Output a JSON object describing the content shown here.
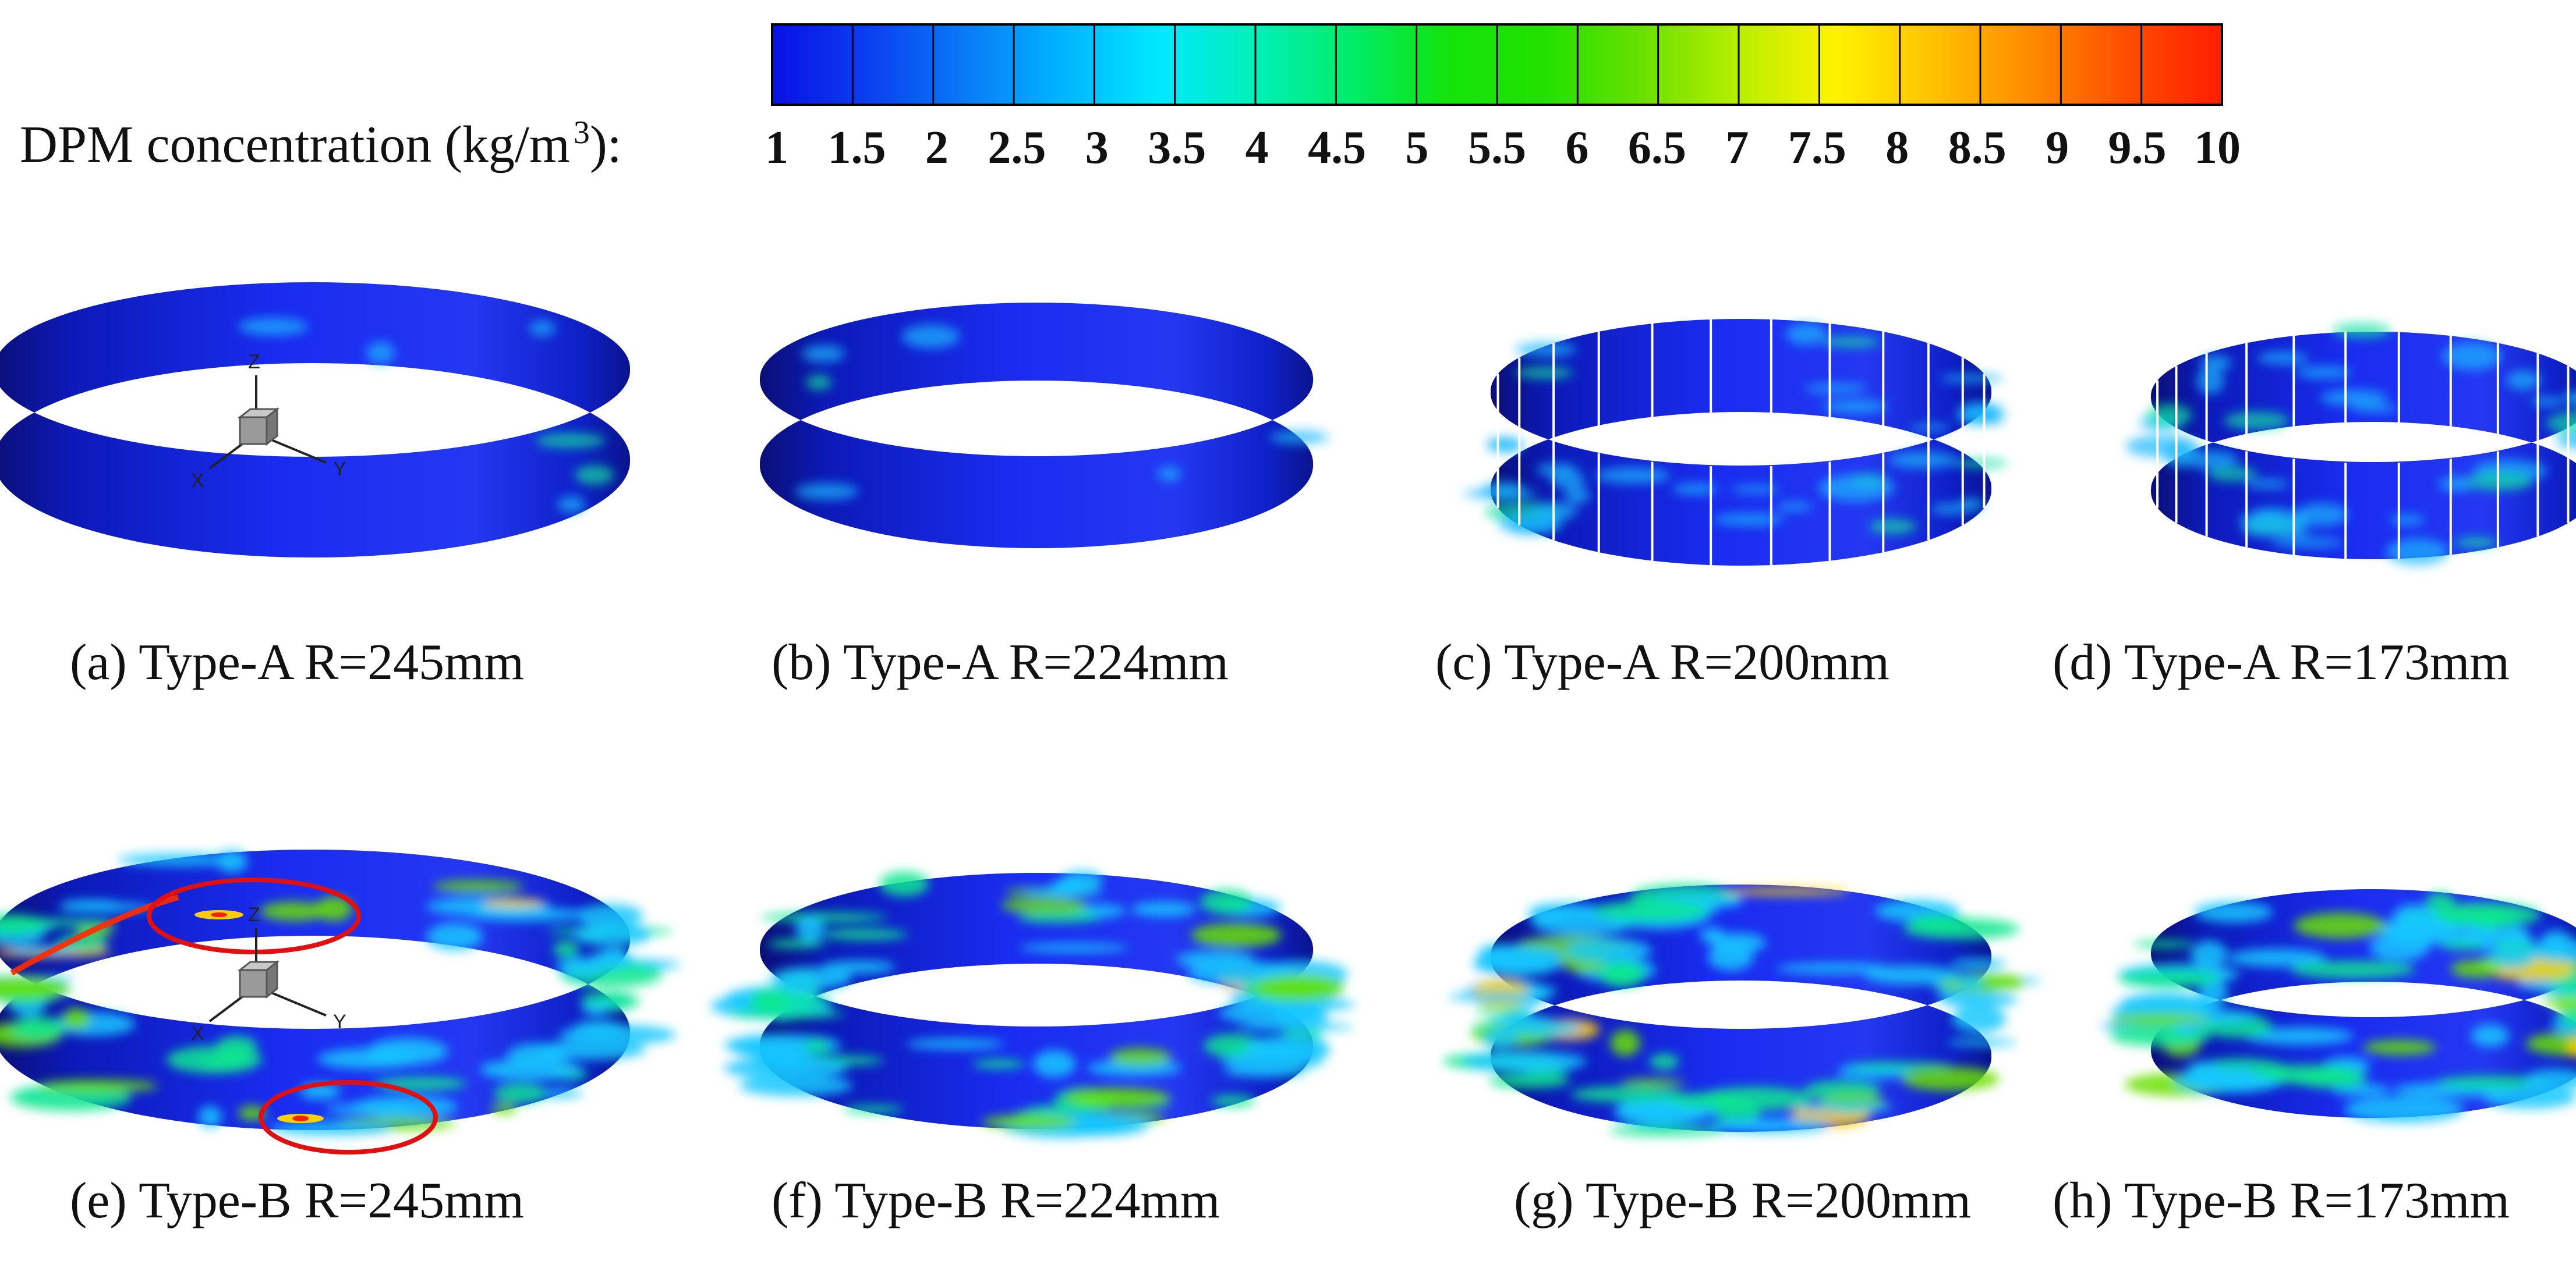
{
  "colorbar": {
    "label": "DPM concentration (kg/m",
    "label_exponent": "3",
    "label_suffix": "):",
    "ticks": [
      "1",
      "1.5",
      "2",
      "2.5",
      "3",
      "3.5",
      "4",
      "4.5",
      "5",
      "5.5",
      "6",
      "6.5",
      "7",
      "7.5",
      "8",
      "8.5",
      "9",
      "9.5",
      "10"
    ],
    "range": [
      1,
      10
    ],
    "colors": [
      "#0a10e6",
      "#0b3ff0",
      "#0a7bf7",
      "#00b4ff",
      "#00e8ff",
      "#00f0b8",
      "#00ec68",
      "#12e40b",
      "#22e000",
      "#6ae000",
      "#b8ee00",
      "#fff200",
      "#ffc200",
      "#ff8c00",
      "#ff4e00",
      "#ff1e00"
    ]
  },
  "axes_triad": {
    "z": "Z",
    "x": "X",
    "y": "Y"
  },
  "panels": [
    {
      "caption": "(a) Type-A R=245mm",
      "type": "A",
      "radius_mm": 245,
      "segmented": false,
      "triad": true
    },
    {
      "caption": "(b) Type-A R=224mm",
      "type": "A",
      "radius_mm": 224,
      "segmented": false,
      "triad": false
    },
    {
      "caption": "(c) Type-A R=200mm",
      "type": "A",
      "radius_mm": 200,
      "segmented": true,
      "triad": false
    },
    {
      "caption": "(d) Type-A R=173mm",
      "type": "A",
      "radius_mm": 173,
      "segmented": true,
      "triad": false
    },
    {
      "caption": "(e) Type-B R=245mm",
      "type": "B",
      "radius_mm": 245,
      "segmented": false,
      "triad": true,
      "highlight_rings": 2
    },
    {
      "caption": "(f) Type-B R=224mm",
      "type": "B",
      "radius_mm": 224,
      "segmented": false,
      "triad": false
    },
    {
      "caption": "(g) Type-B R=200mm",
      "type": "B",
      "radius_mm": 200,
      "segmented": false,
      "triad": false
    },
    {
      "caption": "(h) Type-B R=173mm",
      "type": "B",
      "radius_mm": 173,
      "segmented": false,
      "triad": false
    }
  ],
  "highlight_color": "#e01010"
}
